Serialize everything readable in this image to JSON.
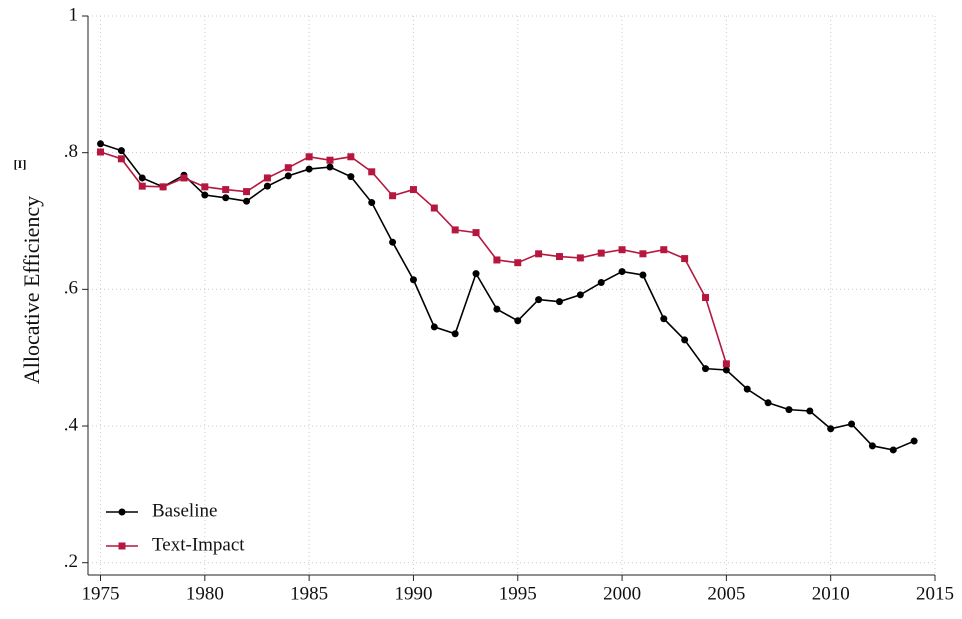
{
  "chart_data": {
    "type": "line",
    "y_label": "Allocative Efficiency",
    "annotation": "[I]",
    "x": [
      1975,
      1976,
      1977,
      1978,
      1979,
      1980,
      1981,
      1982,
      1983,
      1984,
      1985,
      1986,
      1987,
      1988,
      1989,
      1990,
      1991,
      1992,
      1993,
      1994,
      1995,
      1996,
      1997,
      1998,
      1999,
      2000,
      2001,
      2002,
      2003,
      2004,
      2005,
      2006,
      2007,
      2008,
      2009,
      2010,
      2011,
      2012,
      2013,
      2014
    ],
    "series": [
      {
        "name": "Baseline",
        "color": "#000000",
        "marker": "circle",
        "values": [
          0.813,
          0.803,
          0.763,
          0.75,
          0.767,
          0.738,
          0.734,
          0.729,
          0.751,
          0.766,
          0.776,
          0.779,
          0.765,
          0.727,
          0.669,
          0.614,
          0.545,
          0.535,
          0.623,
          0.571,
          0.554,
          0.585,
          0.582,
          0.592,
          0.61,
          0.626,
          0.621,
          0.557,
          0.526,
          0.484,
          0.482,
          0.454,
          0.434,
          0.424,
          0.422,
          0.396,
          0.403,
          0.371,
          0.365,
          0.378
        ]
      },
      {
        "name": "Text-Impact",
        "color": "#b5173f",
        "marker": "square",
        "values": [
          0.801,
          0.791,
          0.751,
          0.75,
          0.763,
          0.75,
          0.746,
          0.743,
          0.763,
          0.778,
          0.794,
          0.789,
          0.794,
          0.772,
          0.737,
          0.746,
          0.719,
          0.687,
          0.683,
          0.643,
          0.639,
          0.652,
          0.648,
          0.646,
          0.653,
          0.658,
          0.652,
          0.658,
          0.645,
          0.588,
          0.491,
          null,
          null,
          null,
          null,
          null,
          null,
          null,
          null,
          null
        ]
      }
    ],
    "xlim": [
      1974.4,
      2015
    ],
    "xticks": [
      1975,
      1980,
      1985,
      1990,
      1995,
      2000,
      2005,
      2010,
      2015
    ],
    "ylim": [
      0.182,
      1
    ],
    "yticks": [
      {
        "value": 0.2,
        "label": ".2"
      },
      {
        "value": 0.4,
        "label": ".4"
      },
      {
        "value": 0.6,
        "label": ".6"
      },
      {
        "value": 0.8,
        "label": ".8"
      },
      1
    ],
    "grid": true,
    "legend": "bottom-left"
  }
}
